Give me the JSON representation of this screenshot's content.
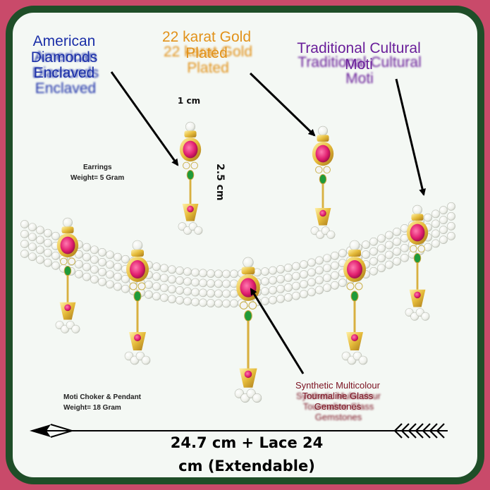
{
  "labels": {
    "american_diamonds": "American Diamonds Enclaved",
    "gold_plated": "22 karat Gold Plated",
    "moti": "Traditional Cultural Moti",
    "tourmaline": "Synthetic Multicolour Tourmaline Glass Gemstones",
    "width_cm": "1 cm",
    "height_cm": "2.5 cm",
    "earrings": "Earrings",
    "earrings_weight": "Weight= 5 Gram",
    "choker": "Moti Choker & Pendant",
    "choker_weight": "Weight= 18 Gram",
    "length_line1": "24.7 cm + Lace 24",
    "length_line2": "cm (Extendable)"
  },
  "colors": {
    "background": "#c94a6a",
    "frame_border": "#1f4e28",
    "panel": "#f4f8f4",
    "diamond_label": "#1b2fa8",
    "gold_label": "#e2921a",
    "moti_label": "#6a1f9a",
    "gem_label": "#7a1020"
  }
}
